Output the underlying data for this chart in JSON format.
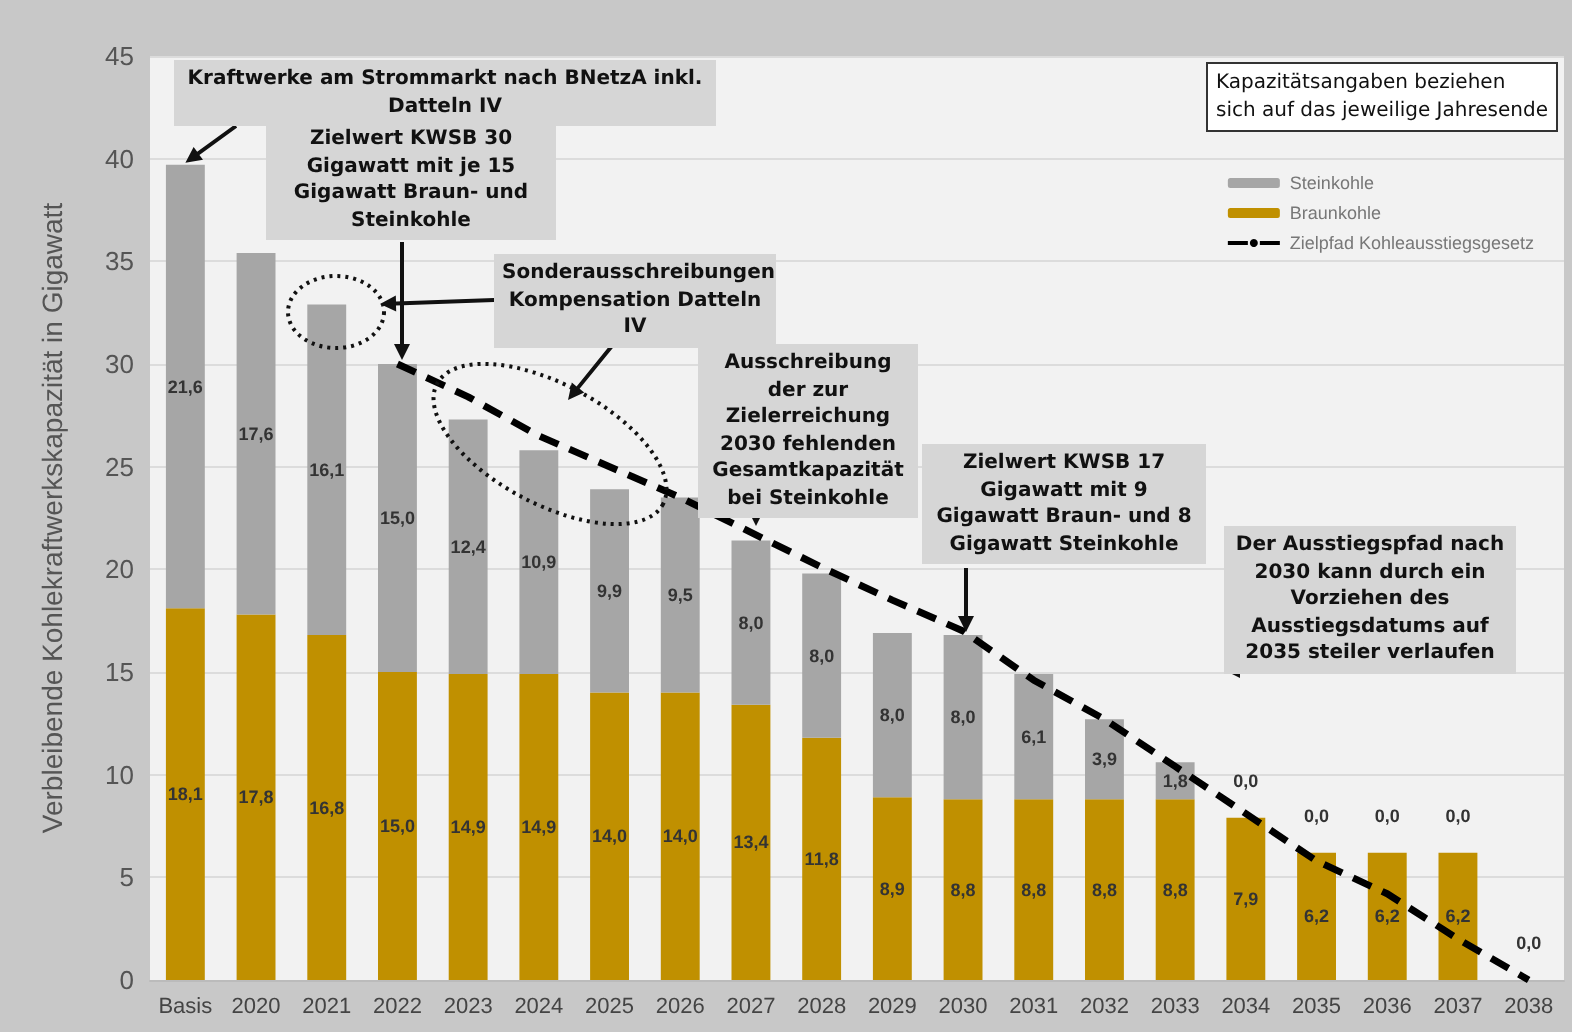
{
  "chart_data": {
    "type": "bar",
    "stacked": true,
    "ylabel": "Verbleibende Kohlekraftwerkskapazität in Gigawatt",
    "categories": [
      "Basis",
      "2020",
      "2021",
      "2022",
      "2023",
      "2024",
      "2025",
      "2026",
      "2027",
      "2028",
      "2029",
      "2030",
      "2031",
      "2032",
      "2033",
      "2034",
      "2035",
      "2036",
      "2037",
      "2038"
    ],
    "series": [
      {
        "name": "Braunkohle",
        "color": "#c09000",
        "values": [
          18.1,
          17.8,
          16.8,
          15.0,
          14.9,
          14.9,
          14.0,
          14.0,
          13.4,
          11.8,
          8.9,
          8.8,
          8.8,
          8.8,
          8.8,
          7.9,
          6.2,
          6.2,
          6.2,
          0.0
        ],
        "value_labels": [
          "18,1",
          "17,8",
          "16,8",
          "15,0",
          "14,9",
          "14,9",
          "14,0",
          "14,0",
          "13,4",
          "11,8",
          "8,9",
          "8,8",
          "8,8",
          "8,8",
          "8,8",
          "7,9",
          "6,2",
          "6,2",
          "6,2",
          "0,0"
        ]
      },
      {
        "name": "Steinkohle",
        "color": "#a6a6a6",
        "values": [
          21.6,
          17.6,
          16.1,
          15.0,
          12.4,
          10.9,
          9.9,
          9.5,
          8.0,
          8.0,
          8.0,
          8.0,
          6.1,
          3.9,
          1.8,
          0.0,
          0.0,
          0.0,
          0.0,
          0.0
        ],
        "value_labels": [
          "21,6",
          "17,6",
          "16,1",
          "15,0",
          "12,4",
          "10,9",
          "9,9",
          "9,5",
          "8,0",
          "8,0",
          "8,0",
          "8,0",
          "6,1",
          "3,9",
          "1,8",
          "0,0",
          "0,0",
          "0,0",
          "0,0",
          null
        ]
      },
      {
        "name": "Zielpfad Kohleausstiegsgesetz",
        "type": "line",
        "color": "#000000",
        "line_style": "dashed",
        "marker": "none",
        "values": [
          null,
          null,
          null,
          30,
          28.4,
          26.5,
          25,
          23.5,
          21.8,
          20.1,
          18.5,
          17,
          14.6,
          12.7,
          10.4,
          8.1,
          5.8,
          4.2,
          2.0,
          0
        ]
      }
    ],
    "ylim": [
      0,
      45
    ],
    "yticks": [
      0,
      5,
      10,
      15,
      20,
      25,
      30,
      35,
      40,
      45
    ],
    "grid": "y",
    "legend": "top right",
    "annotations": [
      {
        "text": "Kraftwerke am Strommarkt nach BNetzA inkl. Datteln IV",
        "x": "Basis",
        "y": 39.7
      },
      "Zielwert KWSB 30 Gigawatt mit je 15 Gigawatt Braun- und Steinkohle",
      "Sonderausschreibungen Kompensation Datteln IV",
      "Ausschreibung der zur Zielerreichung 2030 fehlenden Gesamtkapazität bei Steinkohle",
      "Zielwert KWSB 17 Gigawatt mit 9 Gigawatt Braun- und 8 Gigawatt Steinkohle",
      "Der Ausstiegspfad nach 2030 kann durch ein Vorziehen des Ausstiegsdatums auf 2035 steiler verlaufen",
      "Kapazitätsangaben beziehen sich auf das jeweilige Jahresende"
    ]
  }
}
